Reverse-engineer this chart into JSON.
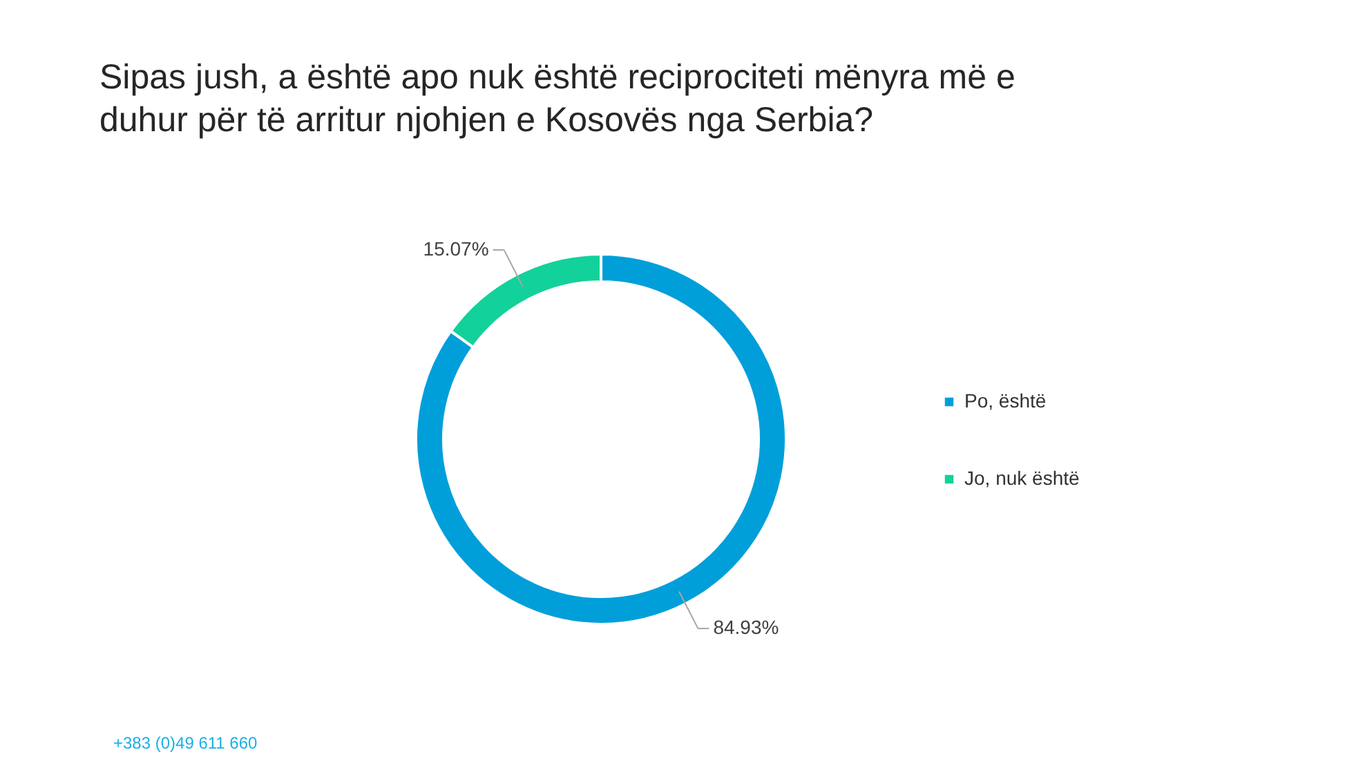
{
  "chart_data": {
    "type": "donut",
    "title": "Sipas jush, a është apo nuk është reciprociteti mënyra më e duhur për të arritur njohjen e Kosovës nga Serbia?",
    "categories": [
      "Po, është",
      "Jo, nuk është"
    ],
    "values": [
      84.93,
      15.07
    ],
    "colors": [
      "#009fda",
      "#13d19a"
    ],
    "value_labels": [
      "84.93%",
      "15.07%"
    ],
    "legend": "right",
    "annotations": [
      "+383 (0)49 611 660"
    ]
  }
}
